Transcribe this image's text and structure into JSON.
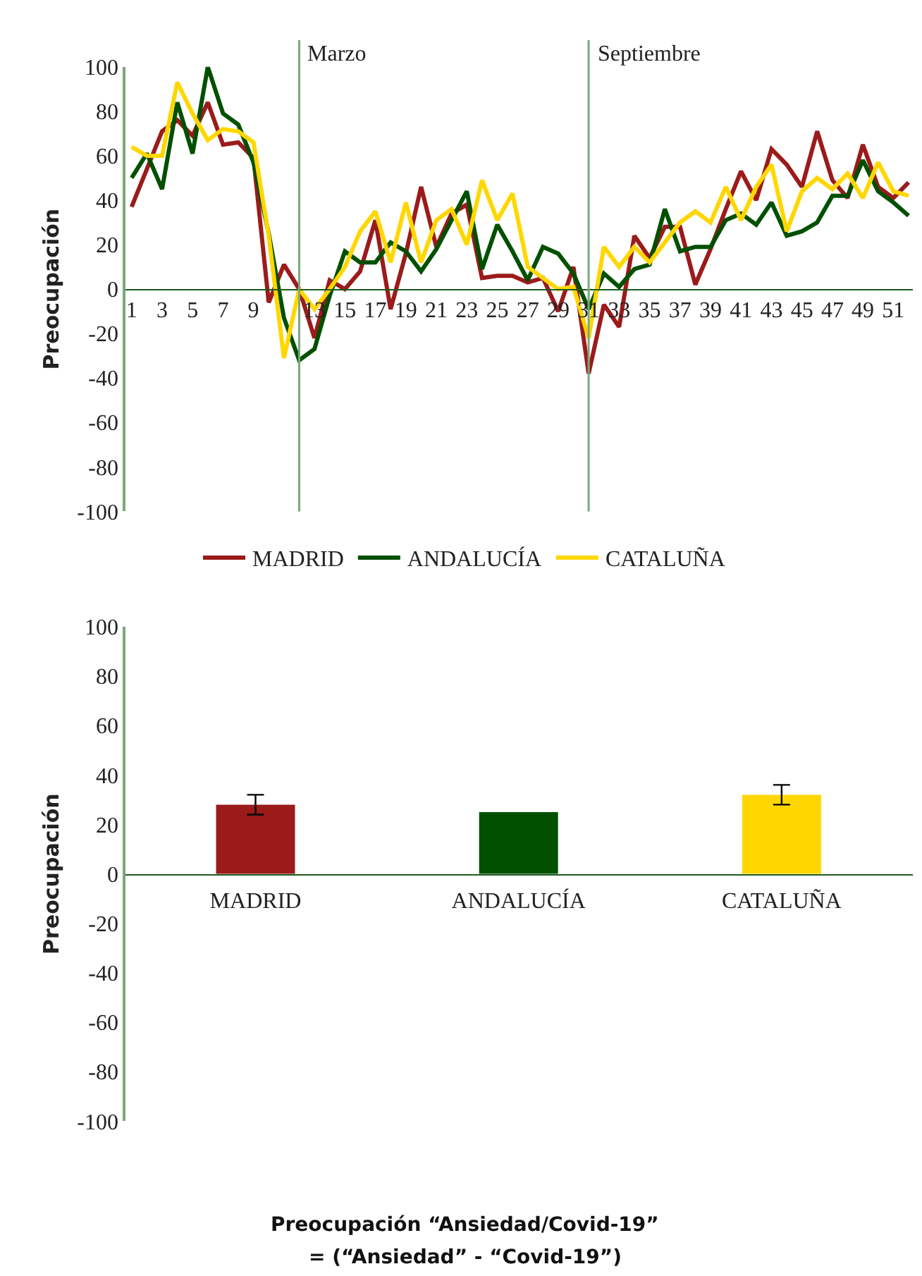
{
  "chart_data": [
    {
      "type": "line",
      "ylabel": "Preocupación",
      "x": [
        1,
        2,
        3,
        4,
        5,
        6,
        7,
        8,
        9,
        10,
        11,
        12,
        13,
        14,
        15,
        16,
        17,
        18,
        19,
        20,
        21,
        22,
        23,
        24,
        25,
        26,
        27,
        28,
        29,
        30,
        31,
        32,
        33,
        34,
        35,
        36,
        37,
        38,
        39,
        40,
        41,
        42,
        43,
        44,
        45,
        46,
        47,
        48,
        49,
        50,
        51,
        52
      ],
      "series": [
        {
          "name": "MADRID",
          "color": "#9b1b1b",
          "values": [
            37,
            54,
            71,
            76,
            69,
            84,
            65,
            66,
            59,
            -6,
            11,
            0,
            -22,
            4,
            0,
            8,
            31,
            -9,
            16,
            46,
            19,
            34,
            38,
            5,
            6,
            6,
            3,
            5,
            -10,
            10,
            -38,
            -7,
            -17,
            24,
            14,
            28,
            28,
            2,
            18,
            36,
            53,
            40,
            63,
            56,
            46,
            71,
            49,
            41,
            65,
            46,
            41,
            48
          ]
        },
        {
          "name": "ANDALUCÍA",
          "color": "#005000",
          "values": [
            50,
            61,
            45,
            84,
            61,
            100,
            79,
            74,
            57,
            25,
            -13,
            -32,
            -27,
            -3,
            17,
            12,
            12,
            21,
            17,
            8,
            18,
            31,
            44,
            9,
            29,
            17,
            4,
            19,
            16,
            7,
            -9,
            7,
            1,
            9,
            11,
            36,
            17,
            19,
            19,
            31,
            34,
            29,
            39,
            24,
            26,
            30,
            42,
            42,
            58,
            44,
            39,
            33
          ]
        },
        {
          "name": "CATALUÑA",
          "color": "#ffd700",
          "values": [
            64,
            60,
            60,
            93,
            79,
            67,
            72,
            71,
            66,
            24,
            -31,
            0,
            -9,
            0,
            10,
            26,
            35,
            12,
            39,
            12,
            31,
            36,
            20,
            49,
            31,
            43,
            10,
            5,
            0,
            1,
            -22,
            19,
            10,
            19,
            12,
            21,
            30,
            35,
            30,
            46,
            31,
            46,
            56,
            26,
            44,
            50,
            45,
            52,
            41,
            57,
            44,
            42
          ]
        }
      ],
      "xlim": [
        0.5,
        52.3
      ],
      "xticks": [
        1,
        3,
        5,
        7,
        9,
        13,
        15,
        17,
        19,
        21,
        23,
        25,
        27,
        29,
        31,
        33,
        35,
        37,
        39,
        41,
        43,
        45,
        47,
        49,
        51
      ],
      "ylim": [
        -100,
        100
      ],
      "yticks": [
        -100,
        -80,
        -60,
        -40,
        -20,
        0,
        20,
        40,
        60,
        80,
        100
      ],
      "ref_lines": [
        {
          "axis": "x",
          "value": 12,
          "label": "Marzo"
        },
        {
          "axis": "x",
          "value": 31,
          "label": "Septiembre"
        }
      ],
      "legend": "bottom"
    },
    {
      "type": "bar",
      "ylabel": "Preocupación",
      "categories": [
        "MADRID",
        "ANDALUCÍA",
        "CATALUÑA"
      ],
      "values": [
        28,
        25,
        32
      ],
      "colors": [
        "#9b1b1b",
        "#005000",
        "#ffd700"
      ],
      "errors": [
        4,
        null,
        4
      ],
      "ylim": [
        -100,
        100
      ],
      "yticks": [
        -100,
        -80,
        -60,
        -40,
        -20,
        0,
        20,
        40,
        60,
        80,
        100
      ],
      "annotations": [
        "Preocupación “Ansiedad/Covid-19”",
        "= (“Ansiedad” - “Covid-19”)"
      ]
    }
  ]
}
